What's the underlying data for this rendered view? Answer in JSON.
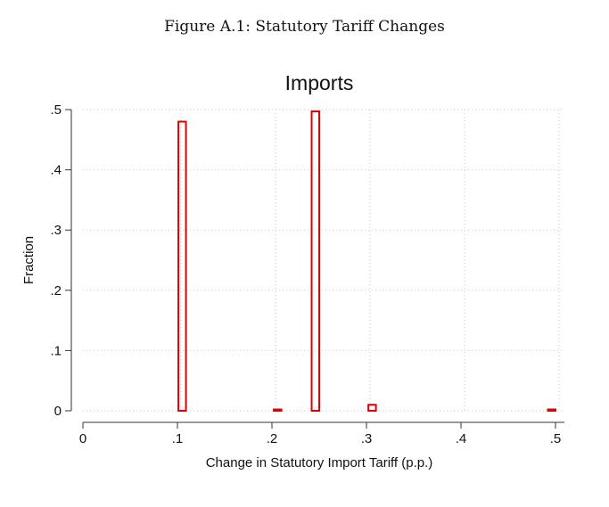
{
  "figure_caption": "Figure A.1: Statutory Tariff Changes",
  "chart_data": {
    "type": "bar",
    "title": "Imports",
    "xlabel": "Change in Statutory Import Tariff (p.p.)",
    "ylabel": "Fraction",
    "xlim": [
      0,
      0.5
    ],
    "ylim": [
      0,
      0.5
    ],
    "x_ticks": [
      0,
      0.1,
      0.2,
      0.3,
      0.4,
      0.5
    ],
    "x_tick_labels": [
      "0",
      ".1",
      ".2",
      ".3",
      ".4",
      ".5"
    ],
    "y_ticks": [
      0,
      0.1,
      0.2,
      0.3,
      0.4,
      0.5
    ],
    "y_tick_labels": [
      "0",
      ".1",
      ".2",
      ".3",
      ".4",
      ".5"
    ],
    "grid": true,
    "bar_color": "#e00000",
    "bars": [
      {
        "x_start": 0.101,
        "x_end": 0.109,
        "value": 0.48
      },
      {
        "x_start": 0.202,
        "x_end": 0.21,
        "value": 0.002
      },
      {
        "x_start": 0.242,
        "x_end": 0.25,
        "value": 0.497
      },
      {
        "x_start": 0.302,
        "x_end": 0.31,
        "value": 0.01
      },
      {
        "x_start": 0.492,
        "x_end": 0.5,
        "value": 0.001
      }
    ]
  }
}
